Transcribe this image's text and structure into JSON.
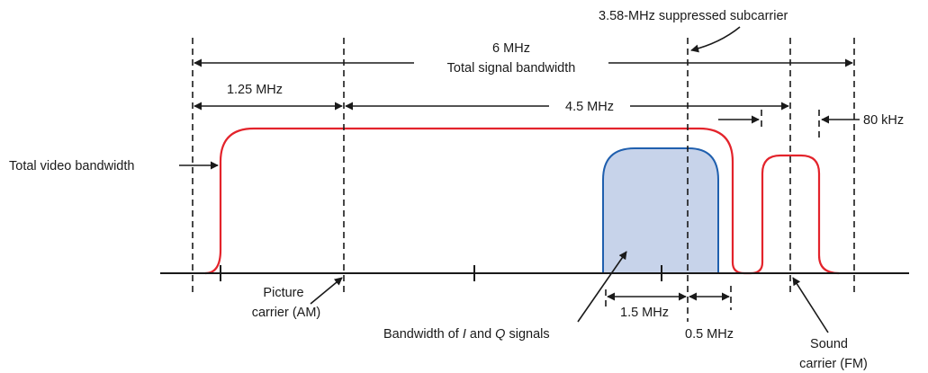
{
  "labels": {
    "total_bw_value": "6 MHz",
    "total_bw_caption": "Total signal bandwidth",
    "subcarrier": "3.58-MHz suppressed subcarrier",
    "picture_offset": "1.25 MHz",
    "sound_offset": "4.5 MHz",
    "guard": "80 kHz",
    "video_bw": "Total video bandwidth",
    "picture_carrier_line1": "Picture",
    "picture_carrier_line2": "carrier (AM)",
    "iq_bw": "1.5 MHz",
    "iq_bw2": "0.5 MHz",
    "iq_caption_pre": "Bandwidth of ",
    "iq_caption_i": "I",
    "iq_caption_mid": " and ",
    "iq_caption_q": "Q",
    "iq_caption_post": " signals",
    "sound_carrier_line1": "Sound",
    "sound_carrier_line2": "carrier (FM)"
  },
  "colors": {
    "video_envelope": "#e3232b",
    "iq_envelope": "#1f5fae",
    "iq_fill": "#c7d3ea",
    "lines": "#1a1a1a"
  }
}
